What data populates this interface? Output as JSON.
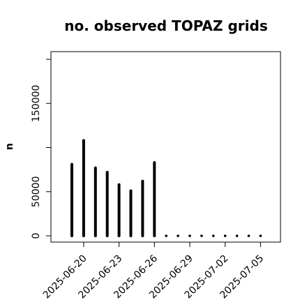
{
  "chart_data": {
    "type": "bar",
    "title": "no. observed TOPAZ grids",
    "ylabel": "n",
    "xlabel": "",
    "ylim": [
      0,
      205000
    ],
    "yticks": [
      0,
      50000,
      150000
    ],
    "xtick_labels": [
      "2025-06-20",
      "2025-06-23",
      "2025-06-26",
      "2025-06-29",
      "2025-07-02",
      "2025-07-05"
    ],
    "highlight_tick": "2025-06-26",
    "highlight_color": "#228b22",
    "bar_color": "#000000",
    "dates": [
      "2025-06-19",
      "2025-06-20",
      "2025-06-21",
      "2025-06-22",
      "2025-06-23",
      "2025-06-24",
      "2025-06-25",
      "2025-06-26",
      "2025-06-27",
      "2025-06-28",
      "2025-06-29",
      "2025-06-30",
      "2025-07-01",
      "2025-07-02",
      "2025-07-03",
      "2025-07-04",
      "2025-07-05"
    ],
    "values": [
      81000,
      108000,
      77000,
      72000,
      58000,
      51000,
      62000,
      83000,
      0,
      0,
      0,
      0,
      0,
      0,
      0,
      0,
      0
    ]
  }
}
